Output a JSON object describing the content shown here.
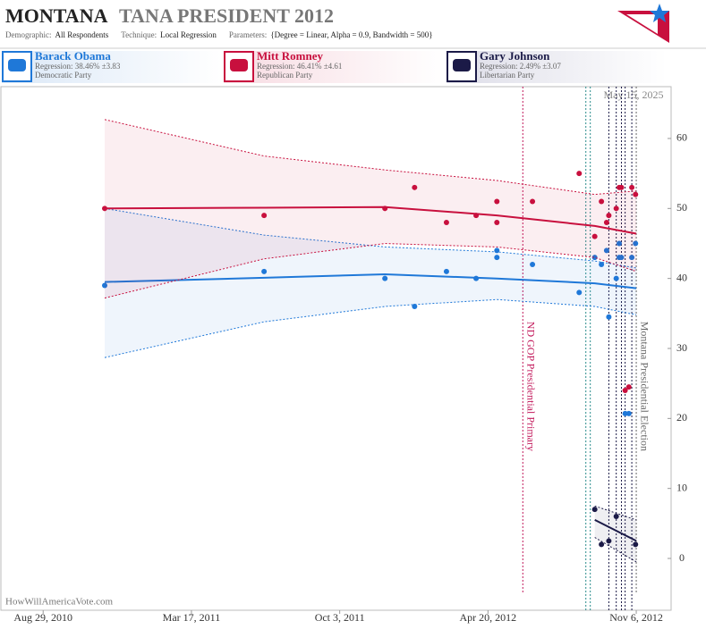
{
  "chart_data": {
    "type": "line",
    "title_main": "MONTANA",
    "title_rest": "TANA PRESIDENT 2012",
    "subtitle": [
      "Demographic:",
      "All Respondents",
      "Technique:",
      "Local Regression",
      "Parameters:",
      "{Degree = Linear, Alpha = 0.9, Bandwidth = 500}"
    ],
    "annotation_date": "May 15, 2025",
    "credit": "HowWillAmericaVote.com",
    "xlim": [
      "2010-07-03",
      "2012-12-23"
    ],
    "xticks": [
      {
        "value": "2010-08-29",
        "label": "Aug 29, 2010"
      },
      {
        "value": "2011-03-17",
        "label": "Mar 17, 2011"
      },
      {
        "value": "2011-10-03",
        "label": "Oct 3, 2011"
      },
      {
        "value": "2012-04-20",
        "label": "Apr 20, 2012"
      },
      {
        "value": "2012-11-06",
        "label": "Nov 6, 2012"
      }
    ],
    "ylim": [
      -7.4,
      67.4
    ],
    "yticks": [
      0,
      10,
      20,
      30,
      40,
      50,
      60
    ],
    "events": [
      {
        "x": "2012-06-06",
        "label": "ND GOP Presidential Primary",
        "color": "#c2185b"
      },
      {
        "x": "2012-11-06",
        "label": "Montana Presidential Election",
        "color": "#666666"
      }
    ],
    "date_lines": [
      {
        "x": "2012-08-30",
        "color": "#2a8c8c"
      },
      {
        "x": "2012-09-05",
        "color": "#2a8c8c"
      },
      {
        "x": "2012-09-30",
        "color": "#1b1a47"
      },
      {
        "x": "2012-10-10",
        "color": "#1b1a47"
      },
      {
        "x": "2012-10-17",
        "color": "#1b1a47"
      },
      {
        "x": "2012-10-22",
        "color": "#1b1a47"
      },
      {
        "x": "2012-10-31",
        "color": "#1b1a47"
      }
    ],
    "x": [
      "2010-11-20",
      "2011-06-23",
      "2011-12-03",
      "2012-05-02",
      "2012-09-11",
      "2012-11-06"
    ],
    "series": [
      {
        "name": "Barack Obama",
        "regression": "Regression: 38.46% ±3.83",
        "party": "Democratic Party",
        "color": "#1f78d8",
        "values": [
          39.5,
          40.1,
          40.6,
          40,
          39.3,
          38.6
        ],
        "upper": [
          50,
          46.2,
          44.5,
          43.8,
          42.5,
          41.5
        ],
        "lower": [
          28.7,
          33.8,
          36,
          37,
          36,
          34.8
        ],
        "polls": {
          "x": [
            "2010-11-20",
            "2011-06-23",
            "2011-12-03",
            "2012-01-12",
            "2012-02-24",
            "2012-04-04",
            "2012-05-02",
            "2012-05-02",
            "2012-06-19",
            "2012-08-21",
            "2012-09-11",
            "2012-09-20",
            "2012-09-27",
            "2012-09-30",
            "2012-10-10",
            "2012-10-14",
            "2012-10-14",
            "2012-10-17",
            "2012-10-22",
            "2012-10-27",
            "2012-10-31",
            "2012-11-05"
          ],
          "values": [
            39,
            41,
            40,
            36,
            41,
            40,
            43,
            44,
            42,
            38,
            43,
            42,
            44,
            34.5,
            40,
            45,
            43,
            43,
            20.7,
            20.7,
            43,
            45
          ]
        }
      },
      {
        "name": "Mitt Romney",
        "regression": "Regression: 46.41% ±4.61",
        "party": "Republican Party",
        "color": "#c8103e",
        "values": [
          50,
          50.1,
          50.2,
          49,
          47.5,
          46.4
        ],
        "upper": [
          62.7,
          57.5,
          55.5,
          54,
          52,
          52.5
        ],
        "lower": [
          37.2,
          42.8,
          45,
          44.5,
          43,
          41
        ],
        "polls": {
          "x": [
            "2010-11-20",
            "2011-06-23",
            "2011-12-03",
            "2012-01-12",
            "2012-02-24",
            "2012-04-04",
            "2012-05-02",
            "2012-05-02",
            "2012-06-19",
            "2012-08-21",
            "2012-09-11",
            "2012-09-20",
            "2012-09-27",
            "2012-09-30",
            "2012-10-10",
            "2012-10-14",
            "2012-10-17",
            "2012-10-22",
            "2012-10-27",
            "2012-10-31",
            "2012-11-05"
          ],
          "values": [
            50,
            49,
            50,
            53,
            48,
            49,
            48,
            51,
            51,
            55,
            46,
            51,
            48,
            49,
            50,
            53,
            53,
            24,
            24.5,
            53,
            52
          ]
        }
      },
      {
        "name": "Gary Johnson",
        "regression": "Regression: 2.49% ±3.07",
        "party": "Libertarian Party",
        "color": "#1b1a47",
        "values": [
          null,
          null,
          null,
          null,
          5.5,
          2.5
        ],
        "upper": [
          null,
          null,
          null,
          null,
          7.5,
          5.5
        ],
        "lower": [
          null,
          null,
          null,
          null,
          3,
          -0.5
        ],
        "polls": {
          "x": [
            "2012-09-11",
            "2012-09-20",
            "2012-09-30",
            "2012-10-10",
            "2012-11-05"
          ],
          "values": [
            7,
            2,
            2.5,
            6,
            2
          ]
        }
      }
    ]
  }
}
